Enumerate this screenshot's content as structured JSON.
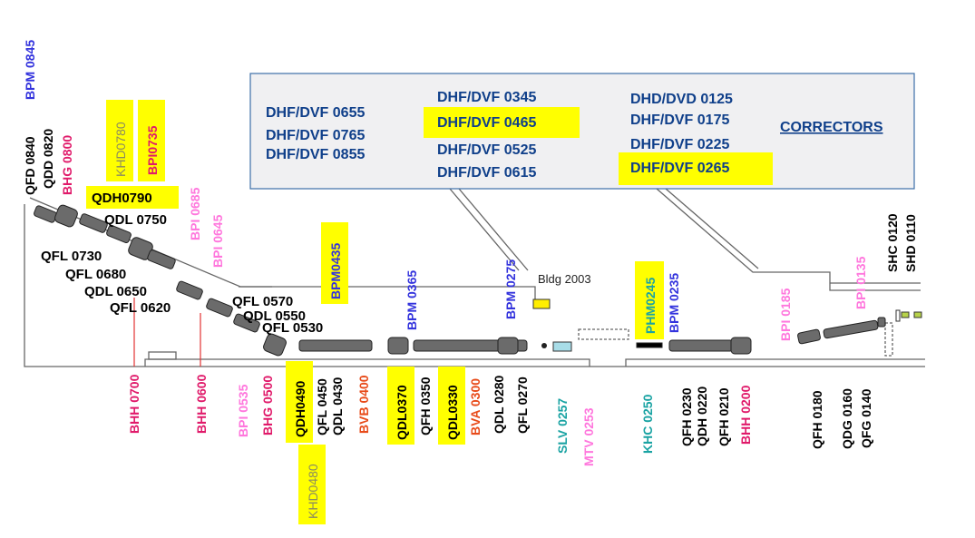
{
  "colors": {
    "black": "#000000",
    "blue": "#3333dd",
    "magenta": "#e01a6a",
    "pink": "#ff77dd",
    "orange": "#e84b1a",
    "teal": "#1aa3a3",
    "olive": "#8a8a60",
    "navy": "#0f3f8a",
    "highlight": "#ffff00",
    "box_fill": "#f0f0f2",
    "box_stroke": "#3c6fa8",
    "red_line": "#e33333"
  },
  "correctors": {
    "title": "CORRECTORS",
    "col1": [
      "DHF/DVF 0655",
      "DHF/DVF 0765",
      "DHF/DVF 0855"
    ],
    "col2": [
      "DHF/DVF 0345",
      "DHF/DVF 0465",
      "DHF/DVF 0525",
      "DHF/DVF 0615"
    ],
    "col3": [
      "DHD/DVD 0125",
      "DHF/DVF 0175",
      "DHF/DVF 0225",
      "DHF/DVF 0265"
    ]
  },
  "building": "Bldg 2003",
  "labels": {
    "bpm0845": "BPM 0845",
    "qfd0840": "QFD 0840",
    "qdd0820": "QDD 0820",
    "bhg0800": "BHG 0800",
    "khd0780": "KHD0780",
    "bpi0735": "BPI0735",
    "qdh0790": "QDH0790",
    "qdl0750": "QDL 0750",
    "bpi0685": "BPI 0685",
    "bpi0645": "BPI 0645",
    "qfl0730": "QFL 0730",
    "qfl0680": "QFL 0680",
    "qdl0650": "QDL 0650",
    "qfl0620": "QFL 0620",
    "qfl0570": "QFL 0570",
    "qdl0550": "QDL 0550",
    "qfl0530": "QFL 0530",
    "bpm0435": "BPM0435",
    "bpm0365": "BPM 0365",
    "bpm0275": "BPM 0275",
    "phm0245": "PHM0245",
    "bpm0235": "BPM 0235",
    "bpi0185": "BPI 0185",
    "bpi0135": "BPI 0135",
    "shc0120": "SHC 0120",
    "shd0110": "SHD 0110",
    "bhh0700": "BHH 0700",
    "bhh0600": "BHH 0600",
    "bpi0535": "BPI 0535",
    "bhg0500": "BHG 0500",
    "qdh0490": "QDH0490",
    "khd0480": "KHD0480",
    "qfl0450": "QFL 0450",
    "qdl0430": "QDL 0430",
    "bvb0400": "BVB 0400",
    "qdl0370": "QDL0370",
    "qfh0350": "QFH 0350",
    "qdl0330": "QDL0330",
    "bva0300": "BVA 0300",
    "qdl0280": "QDL 0280",
    "qfl0270": "QFL 0270",
    "slv0257": "SLV 0257",
    "mtv0253": "MTV 0253",
    "khc0250": "KHC 0250",
    "qfh0230": "QFH 0230",
    "qdh0220": "QDH 0220",
    "qfh0210": "QFH 0210",
    "bhh0200": "BHH 0200",
    "qfh0180": "QFH 0180",
    "qdg0160": "QDG 0160",
    "qfg0140": "QFG 0140"
  }
}
